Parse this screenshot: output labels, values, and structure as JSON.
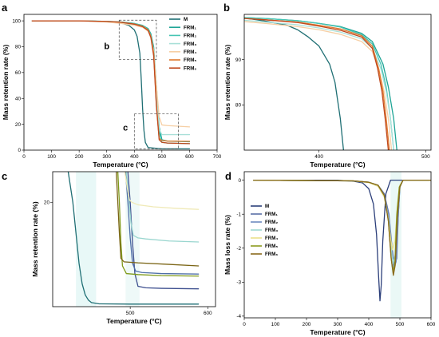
{
  "colors": {
    "M": "#1f6f74",
    "FRM1": "#1fa596",
    "FRM2": "#46c4b3",
    "FRM3": "#a9e0d8",
    "FRM4": "#f6cfa4",
    "FRM5": "#e07a2e",
    "FRM6": "#c0491e",
    "M_d": "#2c3f7a",
    "FRM1_d": "#5a6fa6",
    "FRM2_d": "#6e8ac0",
    "FRM3_d": "#9fd8d1",
    "FRM4_d": "#e9e08a",
    "FRM5_d": "#8c9b1e",
    "FRM6_d": "#8a6a1c",
    "FRM1_c": "#3d4f8f",
    "FRM2_c": "#4f6fa8",
    "FRM3_c": "#9ad6cf",
    "FRM4_c": "#f0eab8",
    "FRM5_c": "#7f9a1a",
    "FRM6_c": "#7a6414"
  },
  "chart_data": [
    {
      "panel": "a",
      "type": "line",
      "xlabel": "Temperature (°C)",
      "ylabel": "Mass retention rate (%)",
      "xlim": [
        0,
        700
      ],
      "ylim": [
        0,
        105
      ],
      "xticks": [
        "0",
        "100",
        "200",
        "300",
        "400",
        "500",
        "600",
        "700"
      ],
      "yticks": [
        "0",
        "20",
        "40",
        "60",
        "80",
        "100"
      ],
      "legend": {
        "placement": "top-right",
        "entries": [
          {
            "label": "M",
            "key": "M"
          },
          {
            "label": "FRM₁",
            "key": "FRM1"
          },
          {
            "label": "FRM₂",
            "key": "FRM2"
          },
          {
            "label": "FRM₃",
            "key": "FRM3"
          },
          {
            "label": "FRM₄",
            "key": "FRM4"
          },
          {
            "label": "FRM₅",
            "key": "FRM5"
          },
          {
            "label": "FRM₆",
            "key": "FRM6"
          }
        ]
      },
      "inset_labels": [
        "b",
        "c"
      ],
      "series": [
        {
          "name": "M",
          "key": "M",
          "x": [
            30,
            200,
            300,
            350,
            380,
            400,
            410,
            420,
            425,
            430,
            435,
            440,
            450,
            500,
            600
          ],
          "y": [
            100,
            100,
            99.5,
            98.5,
            96.5,
            93,
            88,
            75,
            55,
            32,
            15,
            6,
            2,
            1,
            1
          ]
        },
        {
          "name": "FRM₁",
          "key": "FRM1",
          "x": [
            30,
            200,
            300,
            350,
            400,
            430,
            450,
            460,
            470,
            480,
            490,
            500,
            520,
            600
          ],
          "y": [
            100,
            100,
            99.6,
            99.1,
            98,
            96.5,
            94,
            90,
            80,
            50,
            18,
            8,
            7,
            6.5
          ]
        },
        {
          "name": "FRM₂",
          "key": "FRM2",
          "x": [
            30,
            200,
            300,
            350,
            400,
            430,
            450,
            460,
            470,
            480,
            490,
            500,
            520,
            600
          ],
          "y": [
            100,
            100,
            99.6,
            99.1,
            98,
            96.3,
            93.5,
            89,
            78,
            45,
            14,
            6,
            5.5,
            5
          ]
        },
        {
          "name": "FRM₃",
          "key": "FRM3",
          "x": [
            30,
            200,
            300,
            350,
            400,
            430,
            450,
            460,
            470,
            480,
            490,
            500,
            520,
            600
          ],
          "y": [
            100,
            100,
            99.3,
            98.4,
            97,
            95.5,
            92.5,
            88,
            76,
            44,
            16,
            12,
            12,
            12
          ]
        },
        {
          "name": "FRM₄",
          "key": "FRM4",
          "x": [
            30,
            200,
            300,
            350,
            400,
            430,
            450,
            460,
            470,
            480,
            490,
            500,
            520,
            600
          ],
          "y": [
            100,
            100,
            99.1,
            98.1,
            96.5,
            95,
            92,
            87.5,
            77,
            50,
            26,
            19.5,
            19,
            18
          ]
        },
        {
          "name": "FRM₅",
          "key": "FRM5",
          "x": [
            30,
            200,
            300,
            350,
            400,
            430,
            450,
            460,
            470,
            480,
            490,
            500,
            520,
            600
          ],
          "y": [
            100,
            100,
            99.5,
            99,
            97.6,
            95.8,
            93,
            88,
            75,
            35,
            9,
            7.5,
            7,
            6.8
          ]
        },
        {
          "name": "FRM₆",
          "key": "FRM6",
          "x": [
            30,
            200,
            300,
            350,
            400,
            430,
            450,
            460,
            470,
            480,
            490,
            500,
            520,
            600
          ],
          "y": [
            100,
            100,
            99.5,
            98.9,
            97.4,
            95.5,
            92.5,
            87,
            73,
            34,
            8,
            6,
            5.5,
            5
          ]
        }
      ]
    },
    {
      "panel": "b",
      "type": "line",
      "xlabel": "Temperature (°C)",
      "ylabel": "Mass retention rate (%)",
      "xlim": [
        330,
        505
      ],
      "ylim": [
        70,
        100
      ],
      "xticks": [
        "400",
        "500"
      ],
      "yticks": [
        "80",
        "90"
      ],
      "series": [
        {
          "name": "M",
          "key": "M",
          "x": [
            330,
            350,
            370,
            380,
            390,
            400,
            410,
            415,
            420,
            423
          ],
          "y": [
            99.2,
            98.5,
            97.6,
            96.6,
            95,
            93,
            89,
            85,
            77,
            70
          ]
        },
        {
          "name": "FRM₁",
          "key": "FRM1",
          "x": [
            330,
            350,
            380,
            400,
            420,
            440,
            450,
            460,
            465,
            470,
            473
          ],
          "y": [
            99.3,
            99.1,
            98.6,
            98,
            97.3,
            95.8,
            94,
            89,
            84,
            77,
            70
          ]
        },
        {
          "name": "FRM₂",
          "key": "FRM2",
          "x": [
            330,
            350,
            380,
            400,
            420,
            440,
            450,
            458,
            463,
            467,
            470
          ],
          "y": [
            99.3,
            99.1,
            98.6,
            98,
            97.2,
            95.5,
            93.5,
            89,
            84,
            77,
            70
          ]
        },
        {
          "name": "FRM₃",
          "key": "FRM3",
          "x": [
            330,
            350,
            380,
            400,
            420,
            440,
            450,
            458,
            463,
            467,
            470
          ],
          "y": [
            98.7,
            98.3,
            97.7,
            97,
            96.1,
            94.6,
            92.5,
            88,
            83,
            77,
            70
          ]
        },
        {
          "name": "FRM₄",
          "key": "FRM4",
          "x": [
            330,
            350,
            380,
            400,
            420,
            440,
            450,
            456,
            461,
            465,
            468
          ],
          "y": [
            98.4,
            98,
            97.3,
            96.6,
            95.6,
            94,
            91.8,
            88,
            83,
            77,
            70
          ]
        },
        {
          "name": "FRM₅",
          "key": "FRM5",
          "x": [
            330,
            350,
            380,
            400,
            420,
            440,
            450,
            456,
            460,
            463,
            466
          ],
          "y": [
            99.1,
            98.8,
            98.3,
            97.6,
            96.8,
            95.3,
            93,
            88,
            83,
            77,
            70
          ]
        },
        {
          "name": "FRM₆",
          "key": "FRM6",
          "x": [
            330,
            350,
            380,
            400,
            420,
            440,
            450,
            455,
            459,
            462,
            465
          ],
          "y": [
            99.1,
            98.8,
            98.2,
            97.4,
            96.5,
            95,
            92.5,
            88,
            83,
            77,
            70
          ]
        }
      ]
    },
    {
      "panel": "c",
      "type": "line",
      "xlabel": "Temperature (°C)",
      "ylabel": "Mass retention rate (%)",
      "xlim": [
        400,
        610
      ],
      "ylim": [
        -0.5,
        26
      ],
      "xticks": [
        "500",
        "600"
      ],
      "yticks": [
        "20"
      ],
      "series": [
        {
          "name": "M",
          "key": "M",
          "x": [
            420,
            426,
            430,
            434,
            438,
            442,
            446,
            450,
            460,
            500,
            588
          ],
          "y": [
            26,
            20,
            14,
            8,
            4,
            1.8,
            0.8,
            0.3,
            0.05,
            0,
            0
          ]
        },
        {
          "name": "FRM₁",
          "key": "FRM1",
          "x": [
            497,
            500,
            503,
            506,
            510,
            520,
            540,
            588
          ],
          "y": [
            26,
            20,
            12,
            6,
            3.5,
            3.2,
            3.1,
            3
          ]
        },
        {
          "name": "FRM₂",
          "key": "FRM2",
          "x": [
            494,
            497,
            500,
            503,
            507,
            515,
            540,
            588
          ],
          "y": [
            26,
            20,
            13,
            8,
            6.5,
            6.2,
            6,
            5.9
          ]
        },
        {
          "name": "FRM₃",
          "key": "FRM3",
          "x": [
            495,
            498,
            501,
            504,
            510,
            520,
            550,
            588
          ],
          "y": [
            26,
            21,
            16,
            13.5,
            13,
            12.8,
            12.4,
            12.2
          ]
        },
        {
          "name": "FRM₄",
          "key": "FRM4",
          "x": [
            493,
            496,
            499,
            502,
            510,
            530,
            560,
            588
          ],
          "y": [
            26,
            23,
            20.5,
            20,
            19.5,
            19.1,
            18.8,
            18.6
          ]
        },
        {
          "name": "FRM₅",
          "key": "FRM5",
          "x": [
            484,
            486,
            488,
            490,
            495,
            510,
            540,
            588
          ],
          "y": [
            26,
            20,
            12,
            7.5,
            6,
            5.8,
            5.6,
            5.5
          ]
        },
        {
          "name": "FRM₆",
          "key": "FRM6",
          "x": [
            482,
            484,
            486,
            488,
            492,
            510,
            550,
            588
          ],
          "y": [
            26,
            20,
            14,
            9,
            8.3,
            8.1,
            7.8,
            7.5
          ]
        }
      ]
    },
    {
      "panel": "d",
      "type": "line",
      "xlabel": "Temperature (°C)",
      "ylabel": "Mass loss rate (%)",
      "xlim": [
        0,
        600
      ],
      "ylim": [
        -4.05,
        0.25
      ],
      "xticks": [
        "0",
        "100",
        "200",
        "300",
        "400",
        "500",
        "600"
      ],
      "yticks": [
        "-4",
        "-3",
        "-2",
        "-1",
        "0"
      ],
      "legend": {
        "placement": "center-left",
        "entries": [
          {
            "label": "M",
            "key": "M_d"
          },
          {
            "label": "FRM₁",
            "key": "FRM1_d"
          },
          {
            "label": "FRM₂",
            "key": "FRM2_d"
          },
          {
            "label": "FRM₃",
            "key": "FRM3_d"
          },
          {
            "label": "FRM₄",
            "key": "FRM4_d"
          },
          {
            "label": "FRM₅",
            "key": "FRM5_d"
          },
          {
            "label": "FRM₆",
            "key": "FRM6_d"
          }
        ]
      },
      "series": [
        {
          "name": "M",
          "key": "M_d",
          "x": [
            30,
            300,
            350,
            380,
            400,
            415,
            425,
            432,
            436,
            440,
            445,
            455,
            470,
            600
          ],
          "y": [
            0,
            0,
            -0.03,
            -0.08,
            -0.25,
            -0.7,
            -1.6,
            -2.9,
            -3.55,
            -3.1,
            -1.8,
            -0.4,
            0,
            0
          ]
        },
        {
          "name": "FRM₁",
          "key": "FRM1_d",
          "x": [
            30,
            350,
            400,
            430,
            450,
            465,
            475,
            482,
            490,
            495,
            500,
            510,
            600
          ],
          "y": [
            0,
            -0.02,
            -0.06,
            -0.15,
            -0.4,
            -1,
            -2,
            -2.5,
            -2.3,
            -1,
            -0.2,
            0,
            0
          ]
        },
        {
          "name": "FRM₂",
          "key": "FRM2_d",
          "x": [
            30,
            350,
            400,
            430,
            450,
            465,
            475,
            480,
            488,
            495,
            500,
            510,
            600
          ],
          "y": [
            0,
            -0.02,
            -0.06,
            -0.15,
            -0.45,
            -1.1,
            -2.1,
            -2.6,
            -2.4,
            -1,
            -0.2,
            0,
            0
          ]
        },
        {
          "name": "FRM₃",
          "key": "FRM3_d",
          "x": [
            30,
            350,
            400,
            430,
            450,
            465,
            472,
            478,
            485,
            492,
            500,
            510,
            600
          ],
          "y": [
            0,
            -0.02,
            -0.07,
            -0.18,
            -0.5,
            -1.2,
            -2,
            -2.45,
            -2.2,
            -1,
            -0.2,
            0,
            0
          ]
        },
        {
          "name": "FRM₄",
          "key": "FRM4_d",
          "x": [
            30,
            350,
            400,
            430,
            450,
            462,
            470,
            476,
            484,
            492,
            500,
            510,
            600
          ],
          "y": [
            0,
            -0.02,
            -0.07,
            -0.18,
            -0.5,
            -1.1,
            -1.7,
            -2.05,
            -1.8,
            -0.8,
            -0.15,
            0,
            0
          ]
        },
        {
          "name": "FRM₅",
          "key": "FRM5_d",
          "x": [
            30,
            350,
            400,
            430,
            450,
            463,
            472,
            478,
            484,
            490,
            498,
            510,
            600
          ],
          "y": [
            0,
            -0.02,
            -0.06,
            -0.15,
            -0.45,
            -1.2,
            -2.3,
            -2.7,
            -2.4,
            -1,
            -0.2,
            0,
            0
          ]
        },
        {
          "name": "FRM₆",
          "key": "FRM6_d",
          "x": [
            30,
            350,
            400,
            430,
            450,
            463,
            472,
            479,
            485,
            492,
            500,
            510,
            600
          ],
          "y": [
            0,
            -0.02,
            -0.06,
            -0.15,
            -0.45,
            -1.2,
            -2.3,
            -2.8,
            -2.5,
            -1.1,
            -0.2,
            0,
            0
          ]
        }
      ]
    }
  ]
}
